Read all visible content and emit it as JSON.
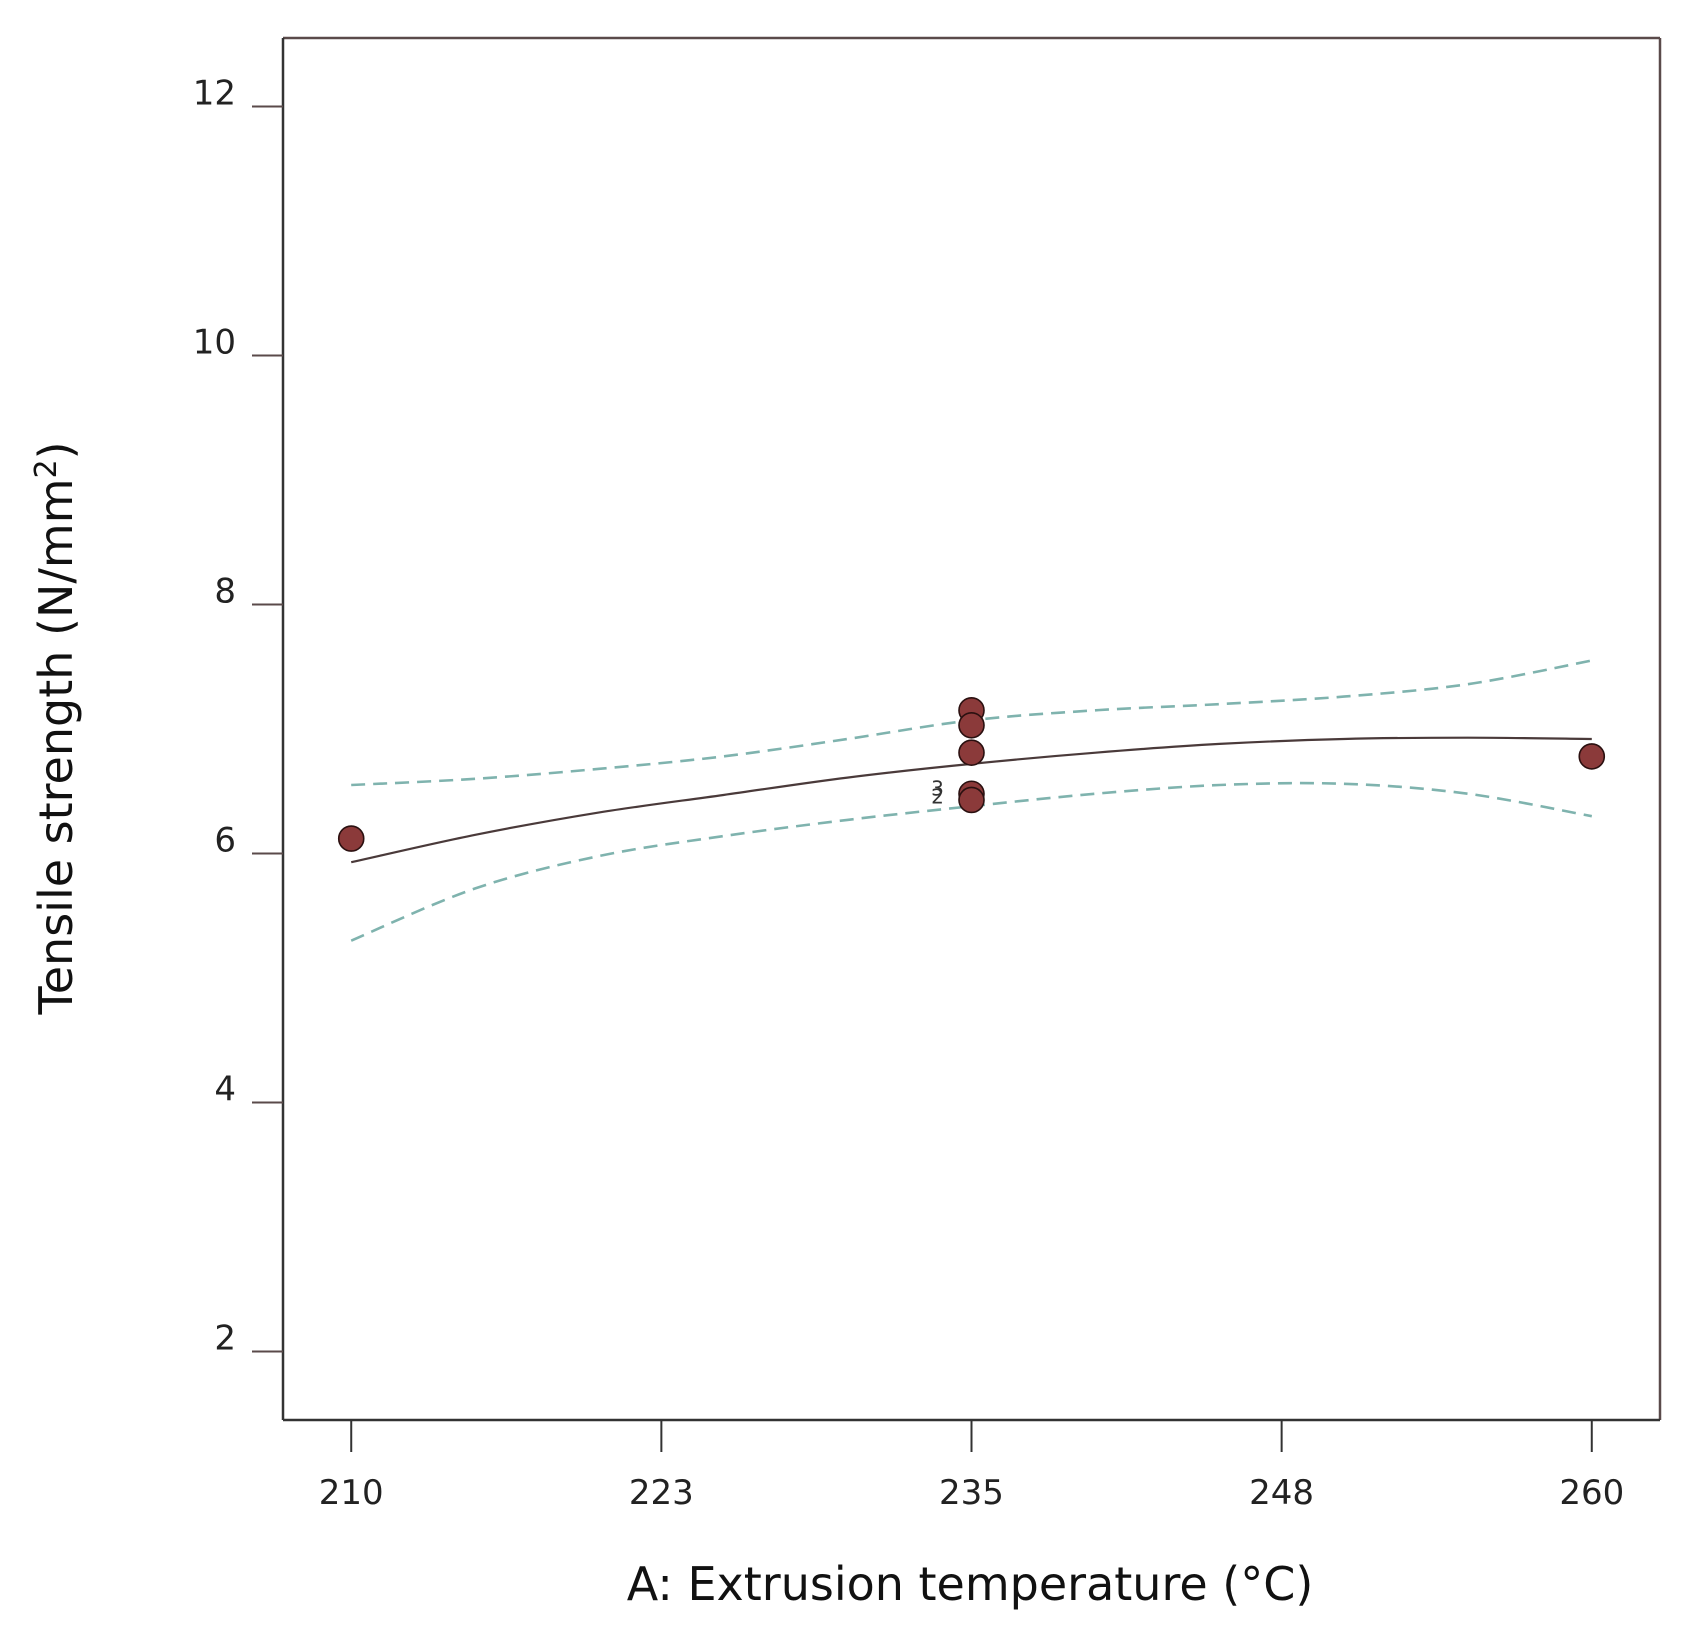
{
  "chart_data": {
    "type": "scatter",
    "title": "",
    "xlabel": "A: Extrusion temperature (°C)",
    "ylabel": "Tensile strength (N/mm",
    "ylabel_sup": "2",
    "ylabel_close": ")",
    "xlim": [
      207.25,
      262.75
    ],
    "ylim": [
      1.45,
      12.55
    ],
    "x_ticks": [
      {
        "value": 210,
        "label": "210"
      },
      {
        "value": 222.5,
        "label": "223"
      },
      {
        "value": 235,
        "label": "235"
      },
      {
        "value": 247.5,
        "label": "248"
      },
      {
        "value": 260,
        "label": "260"
      }
    ],
    "y_ticks": [
      {
        "value": 2,
        "label": "2"
      },
      {
        "value": 4,
        "label": "4"
      },
      {
        "value": 6,
        "label": "6"
      },
      {
        "value": 8,
        "label": "8"
      },
      {
        "value": 10,
        "label": "10"
      },
      {
        "value": 12,
        "label": "12"
      }
    ],
    "points": [
      {
        "x": 210,
        "y": 6.12
      },
      {
        "x": 235,
        "y": 7.15
      },
      {
        "x": 235,
        "y": 7.03
      },
      {
        "x": 235,
        "y": 6.81
      },
      {
        "x": 235,
        "y": 6.48
      },
      {
        "x": 235,
        "y": 6.43
      },
      {
        "x": 260,
        "y": 6.78
      }
    ],
    "point_count_labels": [
      {
        "x": 235,
        "y": 6.45,
        "labels": [
          "3",
          "2"
        ]
      }
    ],
    "series": [
      {
        "name": "Predicted",
        "style": "solid",
        "x": [
          210,
          215,
          220,
          225,
          230,
          235,
          240,
          245,
          250,
          255,
          260
        ],
        "y": [
          5.93,
          6.15,
          6.33,
          6.47,
          6.61,
          6.72,
          6.81,
          6.88,
          6.92,
          6.93,
          6.92
        ]
      },
      {
        "name": "Upper 95% CI",
        "style": "dashed",
        "x": [
          210,
          215,
          220,
          225,
          230,
          235,
          240,
          245,
          250,
          255,
          260
        ],
        "y": [
          6.55,
          6.6,
          6.68,
          6.78,
          6.92,
          7.07,
          7.15,
          7.2,
          7.26,
          7.36,
          7.55
        ]
      },
      {
        "name": "Lower 95% CI",
        "style": "dashed",
        "x": [
          210,
          215,
          220,
          225,
          230,
          235,
          240,
          245,
          250,
          255,
          260
        ],
        "y": [
          5.3,
          5.72,
          5.98,
          6.14,
          6.27,
          6.38,
          6.48,
          6.55,
          6.56,
          6.48,
          6.3
        ]
      }
    ],
    "grid": false,
    "legend": "none"
  },
  "colors": {
    "point_fill": "#8b3a3a",
    "point_stroke": "#2a1010",
    "fit_line": "#4a3a3a",
    "ci_line": "#7fb3ae",
    "frame": "#333333",
    "frame_right": "#5a4a4a"
  }
}
